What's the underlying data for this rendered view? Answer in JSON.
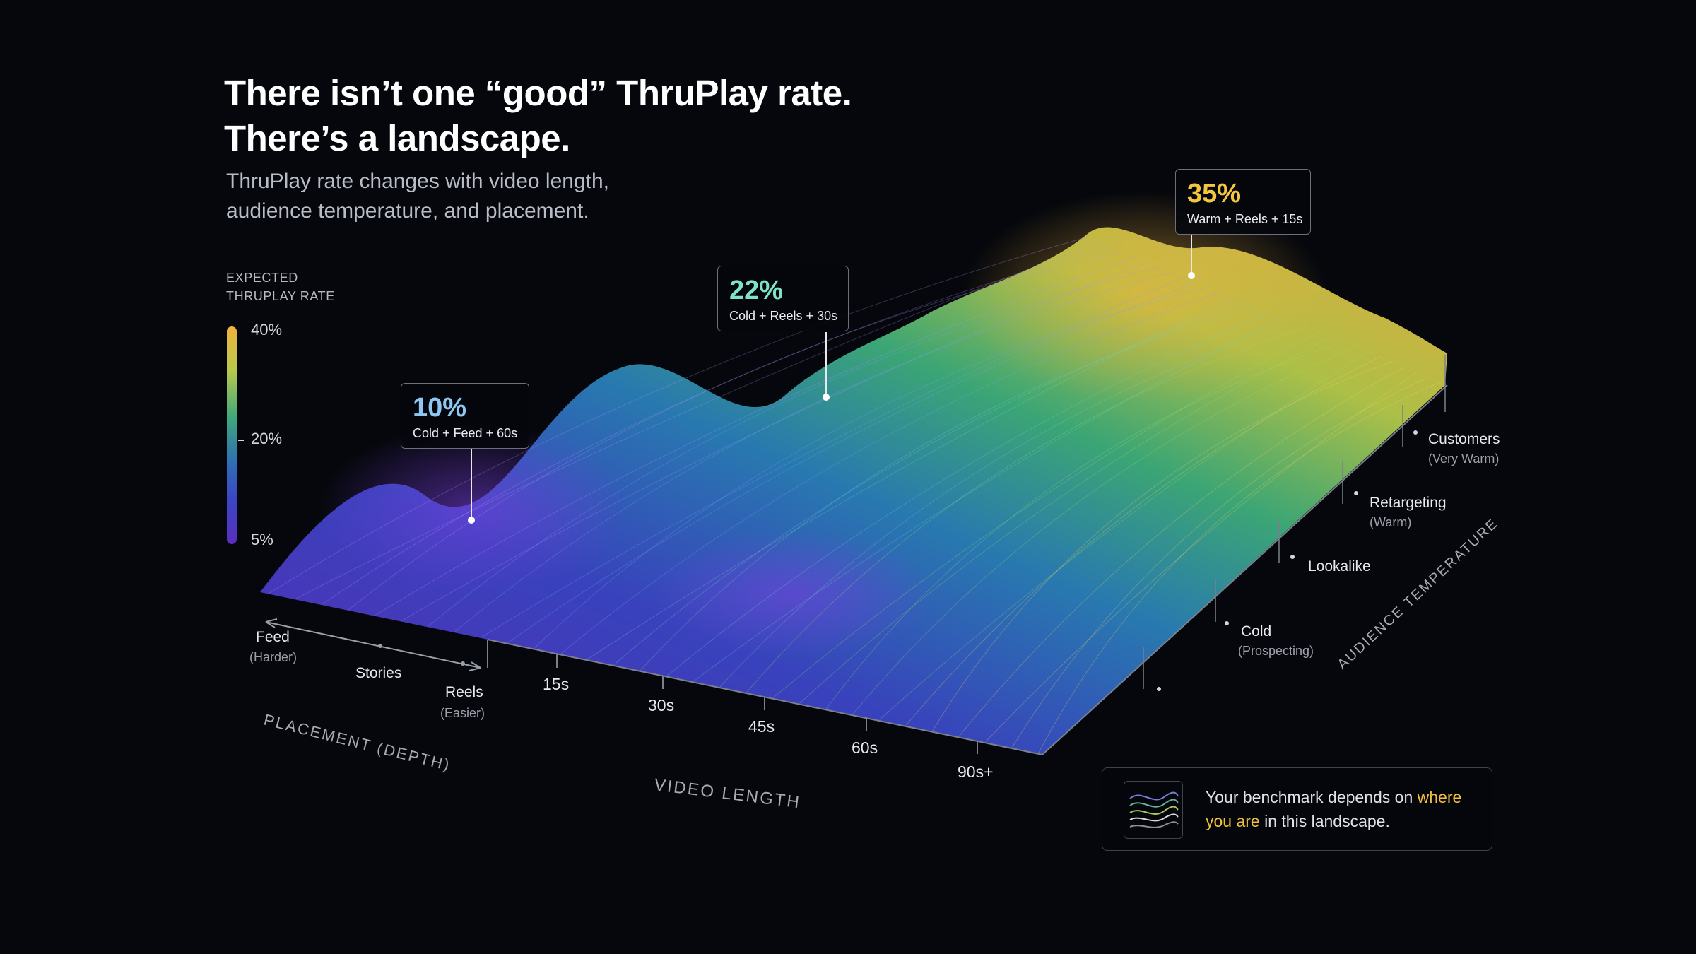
{
  "headline": {
    "line1": "There isn’t one “good” ThruPlay rate.",
    "line2": "There’s a landscape.",
    "sub1": "ThruPlay rate changes with video length,",
    "sub2": "audience temperature, and placement."
  },
  "legend": {
    "title1": "EXPECTED",
    "title2": "THRUPLAY RATE",
    "ticks": [
      "40%",
      "20%",
      "5%"
    ]
  },
  "callouts": [
    {
      "pct": "10%",
      "label": "Cold + Feed + 60s",
      "color": "#8ec8f2"
    },
    {
      "pct": "22%",
      "label": "Cold + Reels + 30s",
      "color": "#7ee3c7"
    },
    {
      "pct": "35%",
      "label": "Warm + Reels + 15s",
      "color": "#f4c53f"
    }
  ],
  "axes": {
    "video_length_title": "VIDEO LENGTH",
    "video_length_ticks": [
      "15s",
      "30s",
      "45s",
      "60s",
      "90s+"
    ],
    "placement_title": "PLACEMENT (DEPTH)",
    "placement_ticks": [
      {
        "main": "Feed",
        "sub": "(Harder)"
      },
      {
        "main": "Stories",
        "sub": ""
      },
      {
        "main": "Reels",
        "sub": "(Easier)"
      }
    ],
    "audience_title": "AUDIENCE TEMPERATURE",
    "audience_ticks": [
      {
        "main": "Cold",
        "sub": "(Prospecting)"
      },
      {
        "main": "Lookalike",
        "sub": ""
      },
      {
        "main": "Retargeting",
        "sub": "(Warm)"
      },
      {
        "main": "Customers",
        "sub": "(Very Warm)"
      }
    ]
  },
  "note": {
    "part1": "Your benchmark depends on ",
    "highlight": "where you are",
    "part2": " in this landscape."
  },
  "colors": {
    "background": "#05070c",
    "low": "#5a2ec0",
    "mid": "#2f6fb3",
    "high": "#f1b23e"
  },
  "chart_data": {
    "type": "surface",
    "title": "There isn’t one “good” ThruPlay rate. There’s a landscape.",
    "subtitle": "ThruPlay rate changes with video length, audience temperature, and placement.",
    "xlabel": "VIDEO LENGTH",
    "ylabel": "AUDIENCE TEMPERATURE",
    "zlabel": "PLACEMENT (DEPTH)",
    "colorbar_label": "EXPECTED THRUPLAY RATE",
    "colorbar_range": [
      "5%",
      "40%"
    ],
    "x_categories": [
      "15s",
      "30s",
      "45s",
      "60s",
      "90s+"
    ],
    "y_categories": [
      "Cold",
      "Lookalike",
      "Retargeting",
      "Customers"
    ],
    "placement_categories": [
      "Feed",
      "Stories",
      "Reels"
    ],
    "annotated_points": [
      {
        "audience": "Cold",
        "placement": "Feed",
        "length": "60s",
        "value": 10
      },
      {
        "audience": "Cold",
        "placement": "Reels",
        "length": "30s",
        "value": 22
      },
      {
        "audience": "Warm",
        "placement": "Reels",
        "length": "15s",
        "value": 35
      }
    ]
  }
}
